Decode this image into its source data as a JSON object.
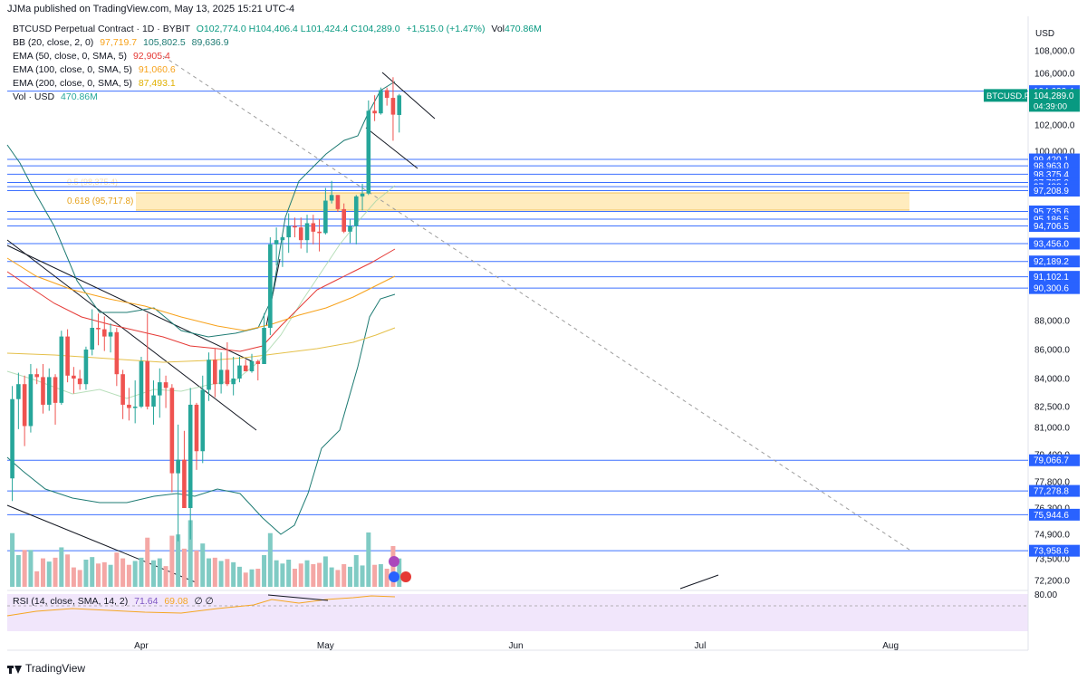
{
  "header": {
    "published": "JJMa published on TradingView.com, May 13, 2025 15:21 UTC-4"
  },
  "legend": {
    "symbol": "BTCUSD Perpetual Contract · 1D · BYBIT",
    "ohlc": "O102,774.0  H104,406.4  L101,424.4  C104,289.0",
    "change": "+1,515.0 (+1.47%)",
    "vol_text": "Vol",
    "vol_value": "470.86M",
    "bb_label": "BB (20, close, 2, 0)",
    "bb_v1": "97,719.7",
    "bb_v2": "105,802.5",
    "bb_v3": "89,636.9",
    "ema50_label": "EMA (50, close, 0, SMA, 5)",
    "ema50_value": "92,905.4",
    "ema100_label": "EMA (100, close, 0, SMA, 5)",
    "ema100_value": "91,060.6",
    "ema200_label": "EMA (200, close, 0, SMA, 5)",
    "ema200_value": "87,493.1",
    "volume_label": "Vol · USD",
    "volume_value": "470.86M"
  },
  "price_axis": {
    "currency": "USD",
    "ticks": [
      "108,000.0",
      "106,000.0",
      "102,000.0",
      "100,000.0",
      "88,000.0",
      "86,000.0",
      "84,000.0",
      "82,500.0",
      "81,000.0",
      "79,400.0",
      "77,800.0",
      "76,300.0",
      "74,900.0",
      "73,500.0",
      "72,200.0"
    ]
  },
  "horizontal_levels": [
    "104,622.4",
    "99,420.1",
    "98,963.0",
    "98,375.4",
    "97,785.0",
    "97,488.1",
    "97,208.9",
    "95,735.6",
    "95,186.5",
    "94,706.5",
    "93,456.0",
    "92,189.2",
    "91,102.1",
    "90,300.6",
    "79,066.7",
    "77,278.8",
    "75,944.6",
    "73,958.6"
  ],
  "current_price": {
    "symbol": "BTCUSD.P",
    "price": "104,289.0",
    "countdown": "04:39:00"
  },
  "fib_label": "0.618 (95,717.8)",
  "fib_label_faded": "0.5 (98,375.4)",
  "time_axis": [
    "Apr",
    "May",
    "Jun",
    "Jul",
    "Aug"
  ],
  "rsi": {
    "label": "RSI (14, close, SMA, 14, 2)",
    "value1": "71.64",
    "value2": "69.08",
    "extra": "∅ ∅",
    "axis_label": "80.00"
  },
  "footer": {
    "brand": "TradingView"
  },
  "colors": {
    "up": "#26a69a",
    "down": "#ef5350",
    "level": "#2962ff",
    "bb": "#1e7b73",
    "ema50": "#e53935",
    "ema100": "#f7a21b",
    "ema200": "#9aa0a6",
    "rsi_line": "#f5a623",
    "rsi_bg": "#f1e6fb",
    "fib_zone": "#ffe9b3"
  },
  "chart_data": {
    "type": "candlestick",
    "interval": "1D",
    "y_range": [
      72000,
      108800
    ],
    "x_domain_note": "daily bars, Mar 10 2025 to Aug 10 2025",
    "candles": [
      {
        "d": "2025-03-11",
        "o": 78000,
        "h": 83600,
        "l": 76700,
        "c": 82900
      },
      {
        "d": "2025-03-12",
        "o": 82900,
        "h": 84400,
        "l": 80900,
        "c": 83700
      },
      {
        "d": "2025-03-13",
        "o": 83700,
        "h": 84200,
        "l": 79900,
        "c": 81100
      },
      {
        "d": "2025-03-14",
        "o": 81100,
        "h": 85000,
        "l": 80700,
        "c": 84300
      },
      {
        "d": "2025-03-15",
        "o": 84300,
        "h": 84700,
        "l": 83700,
        "c": 84100
      },
      {
        "d": "2025-03-16",
        "o": 84100,
        "h": 85000,
        "l": 82000,
        "c": 82600
      },
      {
        "d": "2025-03-17",
        "o": 82600,
        "h": 84700,
        "l": 82200,
        "c": 84100
      },
      {
        "d": "2025-03-18",
        "o": 84100,
        "h": 84300,
        "l": 81200,
        "c": 82700
      },
      {
        "d": "2025-03-19",
        "o": 82700,
        "h": 87300,
        "l": 82600,
        "c": 86900
      },
      {
        "d": "2025-03-20",
        "o": 86900,
        "h": 87400,
        "l": 83800,
        "c": 84200
      },
      {
        "d": "2025-03-21",
        "o": 84200,
        "h": 84800,
        "l": 83200,
        "c": 84000
      },
      {
        "d": "2025-03-22",
        "o": 84000,
        "h": 84600,
        "l": 83400,
        "c": 83700
      },
      {
        "d": "2025-03-23",
        "o": 83700,
        "h": 86200,
        "l": 83400,
        "c": 86000
      },
      {
        "d": "2025-03-24",
        "o": 86000,
        "h": 88800,
        "l": 85600,
        "c": 87500
      },
      {
        "d": "2025-03-25",
        "o": 87500,
        "h": 88500,
        "l": 86300,
        "c": 87400
      },
      {
        "d": "2025-03-26",
        "o": 87400,
        "h": 88300,
        "l": 85900,
        "c": 86900
      },
      {
        "d": "2025-03-27",
        "o": 86900,
        "h": 87800,
        "l": 85800,
        "c": 87200
      },
      {
        "d": "2025-03-28",
        "o": 87200,
        "h": 87500,
        "l": 83600,
        "c": 84300
      },
      {
        "d": "2025-03-29",
        "o": 84300,
        "h": 84600,
        "l": 81600,
        "c": 82600
      },
      {
        "d": "2025-03-30",
        "o": 82600,
        "h": 83500,
        "l": 81500,
        "c": 82400
      },
      {
        "d": "2025-03-31",
        "o": 82400,
        "h": 83900,
        "l": 81300,
        "c": 82500
      },
      {
        "d": "2025-04-01",
        "o": 82500,
        "h": 85500,
        "l": 82400,
        "c": 85200
      },
      {
        "d": "2025-04-02",
        "o": 85200,
        "h": 88500,
        "l": 82300,
        "c": 82500
      },
      {
        "d": "2025-04-03",
        "o": 82500,
        "h": 83900,
        "l": 81200,
        "c": 83100
      },
      {
        "d": "2025-04-04",
        "o": 83100,
        "h": 84700,
        "l": 81700,
        "c": 83800
      },
      {
        "d": "2025-04-05",
        "o": 83800,
        "h": 84200,
        "l": 82400,
        "c": 83500
      },
      {
        "d": "2025-04-06",
        "o": 83500,
        "h": 83700,
        "l": 77200,
        "c": 78300
      },
      {
        "d": "2025-04-07",
        "o": 78300,
        "h": 81200,
        "l": 74500,
        "c": 79100
      },
      {
        "d": "2025-04-08",
        "o": 79100,
        "h": 80800,
        "l": 76300,
        "c": 76300
      },
      {
        "d": "2025-04-09",
        "o": 76300,
        "h": 83500,
        "l": 74600,
        "c": 82600
      },
      {
        "d": "2025-04-10",
        "o": 82600,
        "h": 82700,
        "l": 78500,
        "c": 79600
      },
      {
        "d": "2025-04-11",
        "o": 79600,
        "h": 84200,
        "l": 78900,
        "c": 83400
      },
      {
        "d": "2025-04-12",
        "o": 83400,
        "h": 85800,
        "l": 82800,
        "c": 85300
      },
      {
        "d": "2025-04-13",
        "o": 85300,
        "h": 86100,
        "l": 83000,
        "c": 83700
      },
      {
        "d": "2025-04-14",
        "o": 83700,
        "h": 85800,
        "l": 83200,
        "c": 84600
      },
      {
        "d": "2025-04-15",
        "o": 84600,
        "h": 86500,
        "l": 83600,
        "c": 83700
      },
      {
        "d": "2025-04-16",
        "o": 83700,
        "h": 85500,
        "l": 83100,
        "c": 84000
      },
      {
        "d": "2025-04-17",
        "o": 84000,
        "h": 85500,
        "l": 83800,
        "c": 84900
      },
      {
        "d": "2025-04-18",
        "o": 84900,
        "h": 85300,
        "l": 84500,
        "c": 84500
      },
      {
        "d": "2025-04-19",
        "o": 84500,
        "h": 85700,
        "l": 84400,
        "c": 85200
      },
      {
        "d": "2025-04-20",
        "o": 85200,
        "h": 85300,
        "l": 83900,
        "c": 85000
      },
      {
        "d": "2025-04-21",
        "o": 85000,
        "h": 88500,
        "l": 85000,
        "c": 87500
      },
      {
        "d": "2025-04-22",
        "o": 87500,
        "h": 93900,
        "l": 87000,
        "c": 93400
      },
      {
        "d": "2025-04-23",
        "o": 93400,
        "h": 94600,
        "l": 91900,
        "c": 93700
      },
      {
        "d": "2025-04-24",
        "o": 93700,
        "h": 94000,
        "l": 91800,
        "c": 93900
      },
      {
        "d": "2025-04-25",
        "o": 93900,
        "h": 95600,
        "l": 92800,
        "c": 94700
      },
      {
        "d": "2025-04-26",
        "o": 94700,
        "h": 95300,
        "l": 93900,
        "c": 94600
      },
      {
        "d": "2025-04-27",
        "o": 94600,
        "h": 95300,
        "l": 93100,
        "c": 93700
      },
      {
        "d": "2025-04-28",
        "o": 93700,
        "h": 95500,
        "l": 92800,
        "c": 94900
      },
      {
        "d": "2025-04-29",
        "o": 94900,
        "h": 95500,
        "l": 93400,
        "c": 94300
      },
      {
        "d": "2025-04-30",
        "o": 94300,
        "h": 95200,
        "l": 92900,
        "c": 94200
      },
      {
        "d": "2025-05-01",
        "o": 94200,
        "h": 97400,
        "l": 94100,
        "c": 96500
      },
      {
        "d": "2025-05-02",
        "o": 96500,
        "h": 97900,
        "l": 96300,
        "c": 96900
      },
      {
        "d": "2025-05-03",
        "o": 96900,
        "h": 96900,
        "l": 95700,
        "c": 95900
      },
      {
        "d": "2025-05-04",
        "o": 95900,
        "h": 96300,
        "l": 94200,
        "c": 94300
      },
      {
        "d": "2025-05-05",
        "o": 94300,
        "h": 95200,
        "l": 93500,
        "c": 94700
      },
      {
        "d": "2025-05-06",
        "o": 94700,
        "h": 96900,
        "l": 93400,
        "c": 96800
      },
      {
        "d": "2025-05-07",
        "o": 96800,
        "h": 97700,
        "l": 95800,
        "c": 97000
      },
      {
        "d": "2025-05-08",
        "o": 97000,
        "h": 103900,
        "l": 96900,
        "c": 103100
      },
      {
        "d": "2025-05-09",
        "o": 103100,
        "h": 104300,
        "l": 102300,
        "c": 102900
      },
      {
        "d": "2025-05-10",
        "o": 102900,
        "h": 104900,
        "l": 102800,
        "c": 104700
      },
      {
        "d": "2025-05-11",
        "o": 104700,
        "h": 104900,
        "l": 103500,
        "c": 104100
      },
      {
        "d": "2025-05-12",
        "o": 104100,
        "h": 105700,
        "l": 100800,
        "c": 102800
      },
      {
        "d": "2025-05-13",
        "o": 102774,
        "h": 104406.4,
        "l": 101424.4,
        "c": 104289
      }
    ]
  }
}
